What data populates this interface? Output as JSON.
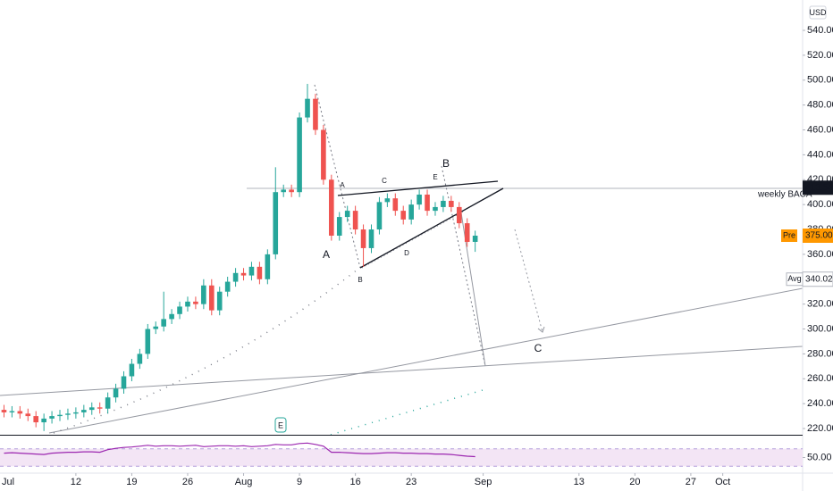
{
  "chart_data": {
    "type": "candlestick",
    "currency": "USD",
    "x": [
      3,
      4,
      5,
      6,
      7,
      8,
      9,
      10,
      11,
      12,
      13,
      14,
      15,
      16,
      17,
      18,
      19,
      20,
      21,
      22,
      23,
      24,
      25,
      26,
      27,
      28,
      29,
      30,
      31,
      32,
      33,
      34,
      35,
      36,
      37,
      38,
      39,
      40,
      41,
      42,
      43,
      44,
      45,
      46,
      47,
      48,
      49,
      50,
      51,
      52,
      53,
      54,
      55,
      56,
      57,
      58,
      59,
      60,
      61,
      62
    ],
    "open": [
      235,
      233,
      234,
      232,
      230,
      225,
      228,
      230,
      231,
      232,
      233,
      235,
      237,
      236,
      245,
      252,
      262,
      272,
      280,
      300,
      302,
      308,
      312,
      318,
      322,
      320,
      335,
      315,
      330,
      338,
      345,
      343,
      350,
      340,
      360,
      410,
      412,
      410,
      470,
      485,
      460,
      420,
      375,
      390,
      395,
      380,
      365,
      380,
      402,
      405,
      395,
      388,
      400,
      408,
      395,
      398,
      403,
      398,
      385,
      370
    ],
    "high": [
      239,
      238,
      238,
      236,
      234,
      232,
      234,
      235,
      236,
      237,
      239,
      241,
      241,
      249,
      256,
      266,
      276,
      284,
      304,
      306,
      330,
      316,
      322,
      326,
      326,
      340,
      340,
      334,
      342,
      349,
      349,
      354,
      354,
      364,
      430,
      416,
      416,
      474,
      497,
      489,
      464,
      424,
      394,
      399,
      399,
      384,
      384,
      406,
      409,
      409,
      399,
      404,
      412,
      412,
      402,
      407,
      407,
      402,
      389,
      379
    ],
    "low": [
      229,
      229,
      228,
      226,
      221,
      218,
      224,
      226,
      227,
      228,
      229,
      231,
      232,
      232,
      241,
      248,
      258,
      268,
      276,
      296,
      298,
      304,
      308,
      314,
      316,
      316,
      311,
      311,
      326,
      334,
      339,
      339,
      336,
      336,
      356,
      406,
      406,
      406,
      466,
      456,
      416,
      371,
      371,
      386,
      376,
      350,
      361,
      376,
      398,
      391,
      384,
      384,
      396,
      391,
      391,
      394,
      394,
      381,
      366,
      362
    ],
    "close": [
      233,
      234,
      232,
      230,
      225,
      228,
      230,
      231,
      232,
      233,
      235,
      237,
      236,
      245,
      252,
      262,
      272,
      280,
      300,
      302,
      308,
      312,
      318,
      322,
      320,
      335,
      315,
      330,
      338,
      345,
      343,
      350,
      340,
      360,
      410,
      412,
      410,
      470,
      485,
      460,
      420,
      375,
      390,
      395,
      380,
      365,
      380,
      402,
      405,
      395,
      388,
      400,
      408,
      395,
      398,
      403,
      398,
      385,
      370,
      375
    ],
    "up_color": "#26a69a",
    "down_color": "#ef5350",
    "xlim": [
      2.5,
      103
    ],
    "xticks": [
      {
        "value": 1,
        "label": "Jul"
      },
      12,
      19,
      26,
      {
        "value": 33,
        "label": "Aug"
      },
      {
        "value": 40,
        "label": "9"
      },
      {
        "value": 47,
        "label": "16"
      },
      {
        "value": 54,
        "label": "23"
      },
      {
        "value": 63,
        "label": "Sep"
      },
      {
        "value": 75,
        "label": "13"
      },
      {
        "value": 82,
        "label": "20"
      },
      {
        "value": 89,
        "label": "27"
      },
      {
        "value": 93,
        "label": "Oct"
      }
    ],
    "ylim": [
      215,
      564.4
    ],
    "yticks": [
      {
        "value": 220,
        "label": "220.00"
      },
      {
        "value": 240,
        "label": "240.00"
      },
      {
        "value": 260,
        "label": "260.00"
      },
      {
        "value": 280,
        "label": "280.00"
      },
      {
        "value": 300,
        "label": "300.00"
      },
      {
        "value": 320,
        "label": "320.00"
      },
      {
        "value": 340,
        "label": "340.00"
      },
      {
        "value": 360,
        "label": "360.00"
      },
      {
        "value": 380,
        "label": "380.00"
      },
      {
        "value": 400,
        "label": "400.00"
      },
      {
        "value": 420,
        "label": "420.00"
      },
      {
        "value": 440,
        "label": "440.00"
      },
      {
        "value": 460,
        "label": "460.00"
      },
      {
        "value": 480,
        "label": "480.00"
      },
      {
        "value": 500,
        "label": "500.00"
      },
      {
        "value": 520,
        "label": "520.00"
      },
      {
        "value": 540,
        "label": "540.00"
      }
    ],
    "grid": false,
    "price_tags": [
      {
        "value": 413.54,
        "label": "413.54",
        "color": "#131722"
      },
      {
        "value": 375,
        "label": "375.00",
        "tag": "Pre",
        "color": "#ff9800"
      },
      {
        "value": 340.02,
        "label": "340.02",
        "tag": "Avg",
        "color": "#ffffff"
      }
    ],
    "annotations": [
      "weekly BACA",
      "A",
      "B",
      "C",
      "A",
      "B",
      "C",
      "D",
      "E",
      "E"
    ],
    "indicator": {
      "values": [
        60,
        61,
        60,
        59,
        58,
        57,
        60,
        61,
        62,
        62,
        63,
        63,
        62,
        68,
        71,
        73,
        74,
        76,
        78,
        76,
        77,
        77,
        76,
        77,
        78,
        75,
        76,
        77,
        77,
        76,
        77,
        75,
        76,
        77,
        80,
        79,
        79,
        82,
        83,
        80,
        76,
        62,
        62,
        61,
        60,
        59,
        59,
        60,
        61,
        61,
        60,
        60,
        59,
        59,
        58,
        58,
        57,
        55,
        53,
        52
      ],
      "ylim": [
        0,
        100
      ],
      "band": [
        30,
        70
      ],
      "yticks": [
        {
          "value": 50,
          "label": "50.00"
        }
      ],
      "color": "#9c27b0"
    }
  }
}
